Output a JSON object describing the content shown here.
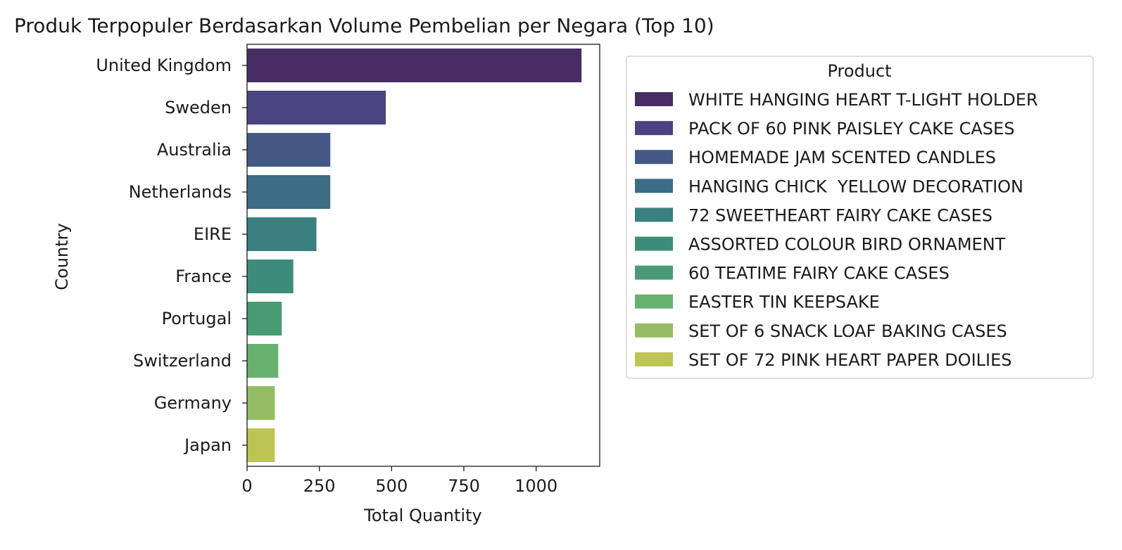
{
  "chart_data": {
    "type": "bar",
    "orientation": "horizontal",
    "title": "Produk Terpopuler Berdasarkan Volume Pembelian per Negara (Top 10)",
    "xlabel": "Total Quantity",
    "ylabel": "Country",
    "xlim": [
      0,
      1220
    ],
    "xticks": [
      0,
      250,
      500,
      750,
      1000
    ],
    "grid": false,
    "legend_title": "Product",
    "legend_position": "outside-right",
    "categories": [
      "United Kingdom",
      "Sweden",
      "Australia",
      "Netherlands",
      "EIRE",
      "France",
      "Portugal",
      "Switzerland",
      "Germany",
      "Japan"
    ],
    "values": [
      1157,
      480,
      288,
      288,
      240,
      160,
      120,
      108,
      96,
      96
    ],
    "products": [
      "WHITE HANGING HEART T-LIGHT HOLDER",
      "PACK OF 60 PINK PAISLEY CAKE CASES",
      "HOMEMADE JAM SCENTED CANDLES",
      "HANGING CHICK  YELLOW DECORATION",
      "72 SWEETHEART FAIRY CAKE CASES",
      "ASSORTED COLOUR BIRD ORNAMENT",
      "60 TEATIME FAIRY CAKE CASES",
      "EASTER TIN KEEPSAKE",
      "SET OF 6 SNACK LOAF BAKING CASES",
      "SET OF 72 PINK HEART PAPER DOILIES"
    ],
    "colors": [
      "#472d63",
      "#4a4580",
      "#445a85",
      "#3d6d85",
      "#3a8080",
      "#3d8c79",
      "#4a9a73",
      "#68b06f",
      "#94be65",
      "#bcc453"
    ]
  }
}
